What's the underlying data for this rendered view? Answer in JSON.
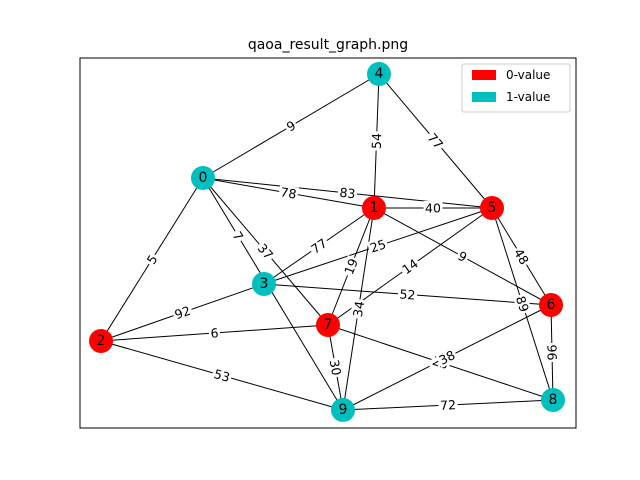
{
  "title": "qaoa_result_graph.png",
  "colors": {
    "zero": "#ff0000",
    "one": "#00bfbf"
  },
  "legend": [
    {
      "label": "0-value",
      "color_key": "zero"
    },
    {
      "label": "1-value",
      "color_key": "one"
    }
  ],
  "nodes": [
    {
      "id": "0",
      "value": 1
    },
    {
      "id": "1",
      "value": 0
    },
    {
      "id": "2",
      "value": 0
    },
    {
      "id": "3",
      "value": 1
    },
    {
      "id": "4",
      "value": 1
    },
    {
      "id": "5",
      "value": 0
    },
    {
      "id": "6",
      "value": 0
    },
    {
      "id": "7",
      "value": 0
    },
    {
      "id": "8",
      "value": 1
    },
    {
      "id": "9",
      "value": 1
    }
  ],
  "edges": [
    {
      "a": "0",
      "b": "4",
      "weight": "9"
    },
    {
      "a": "0",
      "b": "1",
      "weight": "78"
    },
    {
      "a": "0",
      "b": "5",
      "weight": "83"
    },
    {
      "a": "0",
      "b": "2",
      "weight": "5"
    },
    {
      "a": "0",
      "b": "9",
      "weight": "7"
    },
    {
      "a": "0",
      "b": "7",
      "weight": "37"
    },
    {
      "a": "4",
      "b": "1",
      "weight": "54"
    },
    {
      "a": "4",
      "b": "5",
      "weight": "77"
    },
    {
      "a": "1",
      "b": "5",
      "weight": "40"
    },
    {
      "a": "1",
      "b": "3",
      "weight": "77"
    },
    {
      "a": "1",
      "b": "7",
      "weight": "19"
    },
    {
      "a": "1",
      "b": "9",
      "weight": "34"
    },
    {
      "a": "1",
      "b": "6",
      "weight": "9"
    },
    {
      "a": "5",
      "b": "3",
      "weight": "25"
    },
    {
      "a": "5",
      "b": "7",
      "weight": "14"
    },
    {
      "a": "5",
      "b": "6",
      "weight": "48"
    },
    {
      "a": "5",
      "b": "8",
      "weight": "89"
    },
    {
      "a": "3",
      "b": "2",
      "weight": "92"
    },
    {
      "a": "3",
      "b": "6",
      "weight": "52"
    },
    {
      "a": "2",
      "b": "7",
      "weight": "6"
    },
    {
      "a": "2",
      "b": "9",
      "weight": "53"
    },
    {
      "a": "7",
      "b": "9",
      "weight": "30"
    },
    {
      "a": "7",
      "b": "8",
      "weight": "23"
    },
    {
      "a": "6",
      "b": "9",
      "weight": "38"
    },
    {
      "a": "6",
      "b": "8",
      "weight": "96"
    },
    {
      "a": "9",
      "b": "8",
      "weight": "72"
    }
  ]
}
